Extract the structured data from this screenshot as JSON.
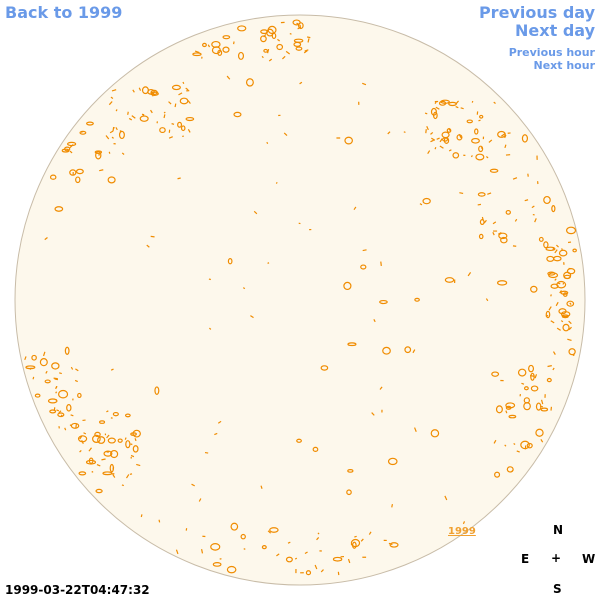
{
  "navigation": {
    "back_label": "Back to 1999",
    "previous_day_label": "Previous day",
    "next_day_label": "Next day",
    "previous_hour_label": "Previous hour",
    "next_hour_label": "Next hour"
  },
  "map": {
    "year_marker": "1999",
    "disk_color": "#fdf8ec",
    "disk_border_color": "#c8bca8",
    "feature_color": "#f08c00"
  },
  "compass": {
    "north": "N",
    "east": "E",
    "center": "+",
    "west": "W",
    "south": "S"
  },
  "timestamp": "1999-03-22T04:47:32"
}
